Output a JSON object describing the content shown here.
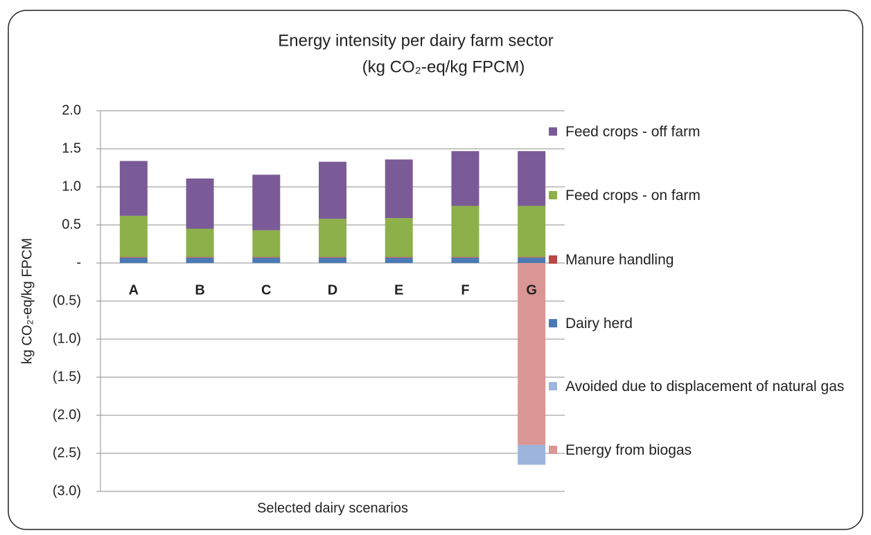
{
  "chart_data": {
    "type": "stacked_bar",
    "title": "Energy intensity per dairy farm sector",
    "subtitle": "(kg CO₂-eq/kg FPCM)",
    "y_label": "kg CO₂-eq/kg FPCM",
    "x_label": "Selected dairy scenarios",
    "categories": [
      "A",
      "B",
      "C",
      "D",
      "E",
      "F",
      "G"
    ],
    "series": [
      {
        "name": "Feed crops - off farm",
        "color": "#7a5b97",
        "values": [
          0.72,
          0.66,
          0.73,
          0.75,
          0.77,
          0.72,
          0.72
        ]
      },
      {
        "name": "Feed crops - on farm",
        "color": "#8eb04a",
        "values": [
          0.54,
          0.37,
          0.35,
          0.5,
          0.51,
          0.67,
          0.67
        ]
      },
      {
        "name": "Manure handling",
        "color": "#b94743",
        "values": [
          0.01,
          0.01,
          0.01,
          0.01,
          0.01,
          0.01,
          0.01
        ]
      },
      {
        "name": "Dairy herd",
        "color": "#4a7ab4",
        "values": [
          0.07,
          0.07,
          0.07,
          0.07,
          0.07,
          0.07,
          0.07
        ]
      },
      {
        "name": "Avoided due to displacement of natural gas",
        "color": "#9db4dc",
        "values": [
          0,
          0,
          0,
          0,
          0,
          0,
          -0.26
        ]
      },
      {
        "name": "Energy from biogas",
        "color": "#d99694",
        "values": [
          0,
          0,
          0,
          0,
          0,
          0,
          -2.39
        ]
      }
    ],
    "ylim": [
      -3,
      2
    ],
    "yticks": [
      {
        "value": -3,
        "label": "(3.0)"
      },
      {
        "value": -2.5,
        "label": "(2.5)"
      },
      {
        "value": -2,
        "label": "(2.0)"
      },
      {
        "value": -1.5,
        "label": "(1.5)"
      },
      {
        "value": -1,
        "label": "(1.0)"
      },
      {
        "value": -0.5,
        "label": "(0.5)"
      },
      {
        "value": 0,
        "label": "-"
      },
      {
        "value": 0.5,
        "label": "0.5"
      },
      {
        "value": 1,
        "label": "1.0"
      },
      {
        "value": 1.5,
        "label": "1.5"
      },
      {
        "value": 2,
        "label": "2.0"
      }
    ],
    "grid": true,
    "legend": "right"
  }
}
